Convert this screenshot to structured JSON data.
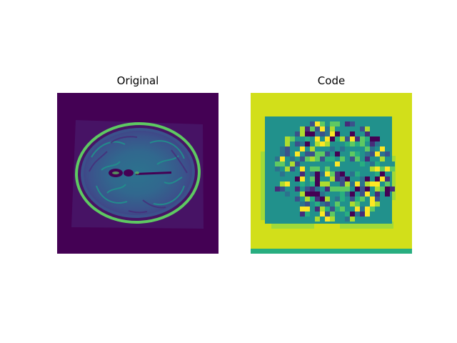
{
  "panels": [
    {
      "title": "Original"
    },
    {
      "title": "Code"
    }
  ],
  "colors": {
    "background": "#3b0f55",
    "dark_purple": "#440154",
    "purple_mid": "#472c7a",
    "blue": "#3b528b",
    "teal_blue": "#2c728e",
    "teal": "#21918c",
    "green_teal": "#28ae80",
    "green": "#5ec962",
    "lime": "#addc30",
    "yellow": "#fde725",
    "olive_yellow": "#d2df1a"
  }
}
